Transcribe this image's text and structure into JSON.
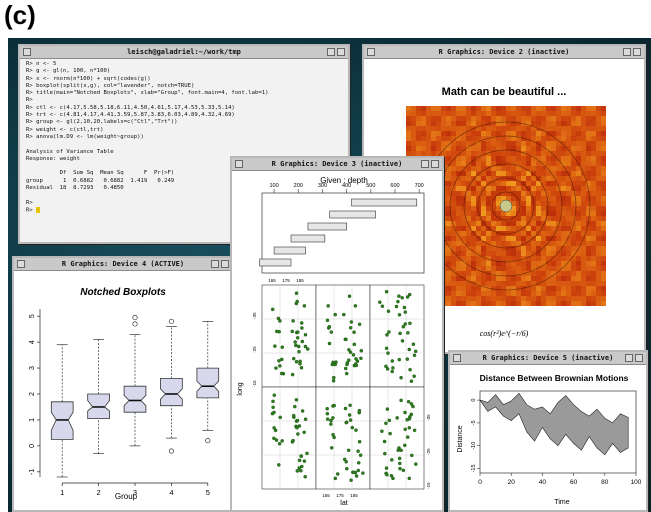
{
  "panel_label": "(c)",
  "terminal": {
    "title": "leisch@galadriel:~/work/tmp",
    "lines": [
      "R> n <- 5",
      "R> g <- gl(n, 100, n*100)",
      "R> x <- rnorm(n*100) + sqrt(codes(g))",
      "R> boxplot(split(x,g), col=\"lavender\", notch=TRUE)",
      "R> title(main=\"Notched Boxplots\", xlab=\"Group\", font.main=4, font.lab=1)",
      "R>",
      "R> ctl <- c(4.17,5.58,5.18,6.11,4.50,4.61,5.17,4.53,5.33,5.14)",
      "R> trt <- c(4.81,4.17,4.41,3.59,5.87,3.83,6.03,4.89,4.32,4.69)",
      "R> group <- gl(2,10,20,labels=c(\"Ctl\",\"Trt\"))",
      "R> weight <- c(ctl,trt)",
      "R> anova(lm.D9 <- lm(weight~group))",
      "",
      "Analysis of Variance Table",
      "Response: weight",
      "",
      "          Df  Sum Sq  Mean Sq      F  Pr(>F)",
      "group      1  0.6882   0.6882  1.419   0.249",
      "Residual  18  8.7293   0.4850",
      "",
      "R>"
    ],
    "prompt": "R> "
  },
  "device2": {
    "title": "R Graphics: Device 2 (inactive)",
    "plot_title": "Math can be beautiful ...",
    "caption": "cos(r²)e^(−r/6)"
  },
  "device4": {
    "title": "R Graphics: Device 4 (ACTIVE)",
    "chart_data": {
      "type": "boxplot",
      "title": "Notched Boxplots",
      "xlabel": "Group",
      "ylabel": "",
      "ylim": [
        -1.2,
        5.2
      ],
      "yticks": [
        -1,
        0,
        1,
        2,
        3,
        4,
        5
      ],
      "categories": [
        "1",
        "2",
        "3",
        "4",
        "5"
      ],
      "fill": "#d8d8ec",
      "boxes": [
        {
          "min": -1.2,
          "q1": 0.25,
          "notch_lo": 0.6,
          "median": 1.0,
          "notch_hi": 1.3,
          "q3": 1.7,
          "max": 3.9,
          "outliers": []
        },
        {
          "min": -0.3,
          "q1": 1.05,
          "notch_lo": 1.35,
          "median": 1.5,
          "notch_hi": 1.75,
          "q3": 2.0,
          "max": 4.1,
          "outliers": []
        },
        {
          "min": 0.0,
          "q1": 1.3,
          "notch_lo": 1.55,
          "median": 1.75,
          "notch_hi": 1.95,
          "q3": 2.3,
          "max": 4.3,
          "outliers": [
            4.7,
            4.95
          ]
        },
        {
          "min": 0.3,
          "q1": 1.55,
          "notch_lo": 1.8,
          "median": 2.0,
          "notch_hi": 2.2,
          "q3": 2.6,
          "max": 4.6,
          "outliers": [
            -0.2,
            4.8
          ]
        },
        {
          "min": 0.6,
          "q1": 1.85,
          "notch_lo": 2.1,
          "median": 2.3,
          "notch_hi": 2.5,
          "q3": 3.0,
          "max": 4.8,
          "outliers": [
            0.2
          ]
        }
      ]
    }
  },
  "device3": {
    "title": "R Graphics: Device 3 (inactive)",
    "chart_data": {
      "type": "scatter",
      "given_label": "Given : depth",
      "given_ticks": [
        100,
        200,
        300,
        400,
        500,
        600,
        700
      ],
      "given_intervals": [
        [
          40,
          170
        ],
        [
          100,
          230
        ],
        [
          170,
          310
        ],
        [
          240,
          400
        ],
        [
          330,
          520
        ],
        [
          420,
          690
        ]
      ],
      "xlabel": "lat",
      "ylabel": "long",
      "x_ticks": [
        "165",
        "175",
        "185"
      ],
      "y_ticks": [
        "-35",
        "-25",
        "-15"
      ],
      "point_color": "#2e7d1e"
    }
  },
  "device5": {
    "title": "R Graphics: Device 5 (inactive)",
    "chart_data": {
      "type": "area",
      "title": "Distance Between Brownian Motions",
      "xlabel": "Time",
      "ylabel": "Distance",
      "xlim": [
        0,
        100
      ],
      "ylim": [
        -16,
        2
      ],
      "xticks": [
        0,
        20,
        40,
        60,
        80,
        100
      ],
      "yticks": [
        -15,
        -10,
        -5,
        0
      ],
      "fill": "#9a9a9a",
      "x": [
        0,
        5,
        10,
        15,
        20,
        25,
        30,
        35,
        40,
        45,
        50,
        55,
        60,
        65,
        70,
        75,
        80,
        85,
        90,
        95
      ],
      "upper": [
        0.0,
        -0.5,
        1.2,
        -1.0,
        -0.2,
        1.5,
        -1.0,
        -2.0,
        -1.5,
        -3.0,
        -0.5,
        1.0,
        -1.0,
        -2.5,
        -3.5,
        -2.0,
        -4.0,
        -5.0,
        -3.0,
        -3.8
      ],
      "lower": [
        0.0,
        -2.5,
        -1.5,
        -3.5,
        -4.5,
        -3.0,
        -7.0,
        -9.0,
        -6.0,
        -8.5,
        -10.0,
        -7.5,
        -9.5,
        -11.0,
        -8.0,
        -10.5,
        -12.0,
        -9.5,
        -11.5,
        -10.5
      ]
    }
  }
}
